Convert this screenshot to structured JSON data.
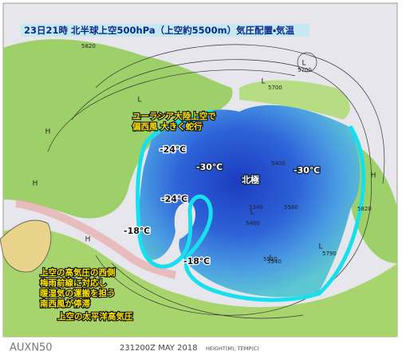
{
  "title": "23日21時 北半球上空500hPa（上空約5500m）気圧配置・気温",
  "annotations": [
    {
      "lines": [
        "ユーラシア大陸上空で",
        "偏西風 大きく蛇行"
      ]
    },
    {
      "lines": [
        "上空の高気圧の西側",
        "梅雨前線に対応し",
        "暖湿気の運搬を担う",
        "南西風が停滞"
      ]
    },
    {
      "lines": [
        "上空の太平洋高気圧"
      ]
    }
  ],
  "temperature_labels": [
    "-24℃",
    "-30℃",
    "-24℃",
    "-18℃",
    "-18℃",
    "-30℃"
  ],
  "pole_label": "北極",
  "contour_labels": [
    "5820",
    "5700",
    "5400",
    "5340",
    "5580",
    "5820",
    "5790",
    "5460",
    "5520",
    "5340",
    "5700"
  ],
  "pressure_marks": [
    "L",
    "L",
    "H",
    "H",
    "L",
    "H",
    "L",
    "L",
    "H",
    "L"
  ],
  "footer": {
    "code": "AUXN50",
    "time": "231200Z MAY 2018",
    "units": "HEIGHT(M), TEMP(C)"
  }
}
